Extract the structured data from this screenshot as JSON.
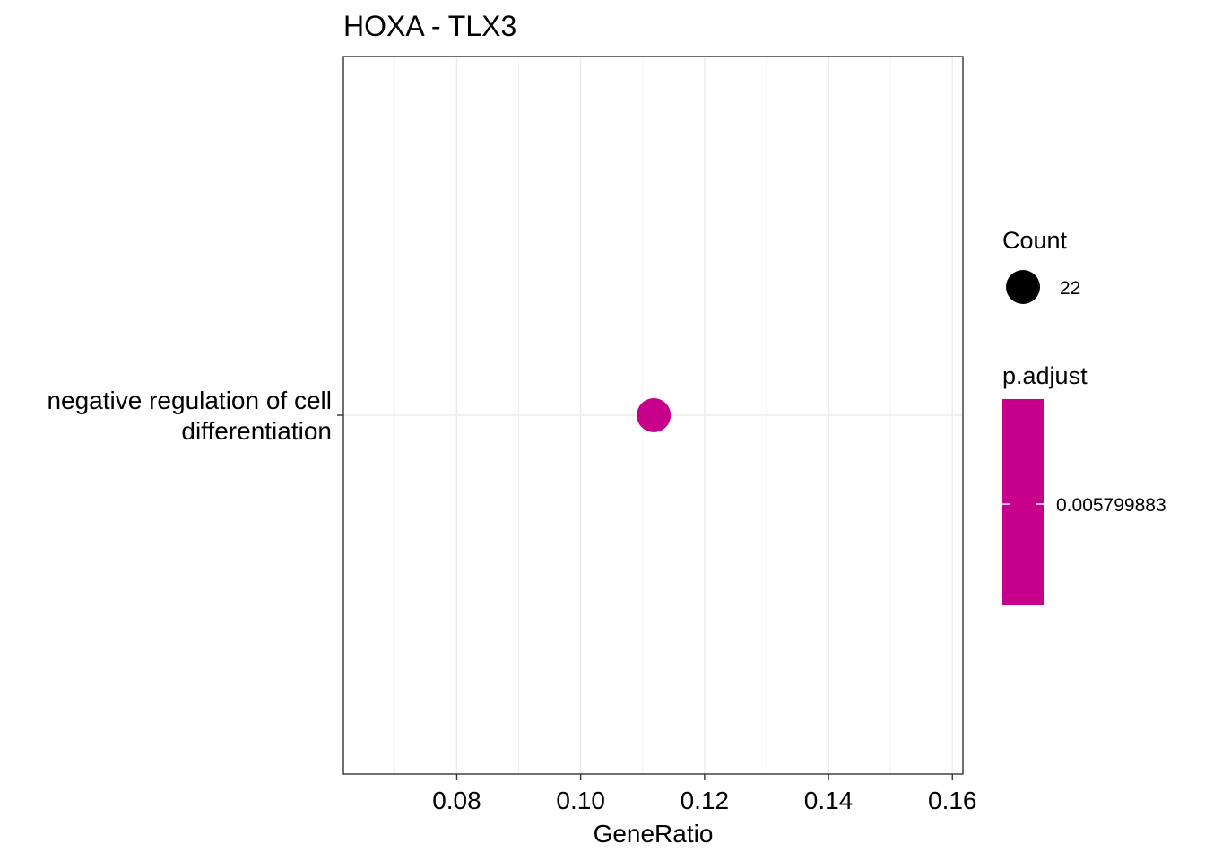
{
  "chart_data": {
    "type": "scatter",
    "title": "HOXA - TLX3",
    "xlabel": "GeneRatio",
    "ylabel": "",
    "xlim": [
      0.0617,
      0.1617
    ],
    "xticks": [
      0.08,
      0.1,
      0.12,
      0.14,
      0.16
    ],
    "xtick_labels": [
      "0.08",
      "0.10",
      "0.12",
      "0.14",
      "0.16"
    ],
    "categories": [
      {
        "lines": [
          "negative regulation of cell",
          "differentiation"
        ]
      }
    ],
    "points": [
      {
        "category_index": 0,
        "x": 0.1118,
        "count": 22,
        "p_adjust": 0.005799883,
        "color": "#C7008C"
      }
    ],
    "grid": true,
    "legend": {
      "placement": "right",
      "size_title": "Count",
      "size_entries": [
        {
          "label": "22",
          "value": 22
        }
      ],
      "color_title": "p.adjust",
      "color_entries": [
        {
          "label": "0.005799883",
          "value": 0.005799883,
          "color": "#C7008C"
        }
      ]
    }
  }
}
